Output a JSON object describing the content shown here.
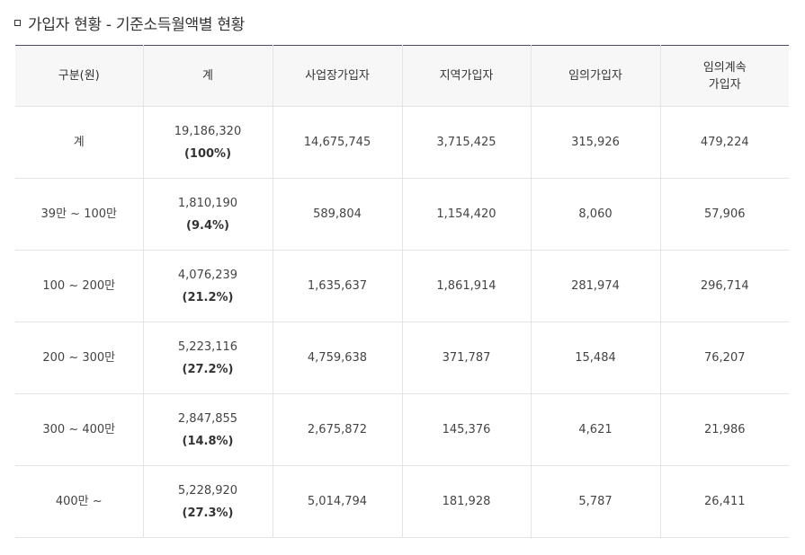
{
  "title": "가입자 현황 - 기준소득월액별 현황",
  "icons": {
    "title_bullet": "square-bullet-icon"
  },
  "table": {
    "headers": {
      "category": "구분(원)",
      "total": "계",
      "workplace": "사업장가입자",
      "regional": "지역가입자",
      "voluntary": "임의가입자",
      "voluntary_continued_line1": "임의계속",
      "voluntary_continued_line2": "가입자"
    },
    "rows": [
      {
        "category": "계",
        "total": "19,186,320",
        "total_pct": "(100%)",
        "workplace": "14,675,745",
        "regional": "3,715,425",
        "voluntary": "315,926",
        "voluntary_continued": "479,224"
      },
      {
        "category": "39만 ~ 100만",
        "total": "1,810,190",
        "total_pct": "(9.4%)",
        "workplace": "589,804",
        "regional": "1,154,420",
        "voluntary": "8,060",
        "voluntary_continued": "57,906"
      },
      {
        "category": "100 ~ 200만",
        "total": "4,076,239",
        "total_pct": "(21.2%)",
        "workplace": "1,635,637",
        "regional": "1,861,914",
        "voluntary": "281,974",
        "voluntary_continued": "296,714"
      },
      {
        "category": "200 ~ 300만",
        "total": "5,223,116",
        "total_pct": "(27.2%)",
        "workplace": "4,759,638",
        "regional": "371,787",
        "voluntary": "15,484",
        "voluntary_continued": "76,207"
      },
      {
        "category": "300 ~ 400만",
        "total": "2,847,855",
        "total_pct": "(14.8%)",
        "workplace": "2,675,872",
        "regional": "145,376",
        "voluntary": "4,621",
        "voluntary_continued": "21,986"
      },
      {
        "category": "400만 ~",
        "total": "5,228,920",
        "total_pct": "(27.3%)",
        "workplace": "5,014,794",
        "regional": "181,928",
        "voluntary": "5,787",
        "voluntary_continued": "26,411"
      }
    ]
  }
}
